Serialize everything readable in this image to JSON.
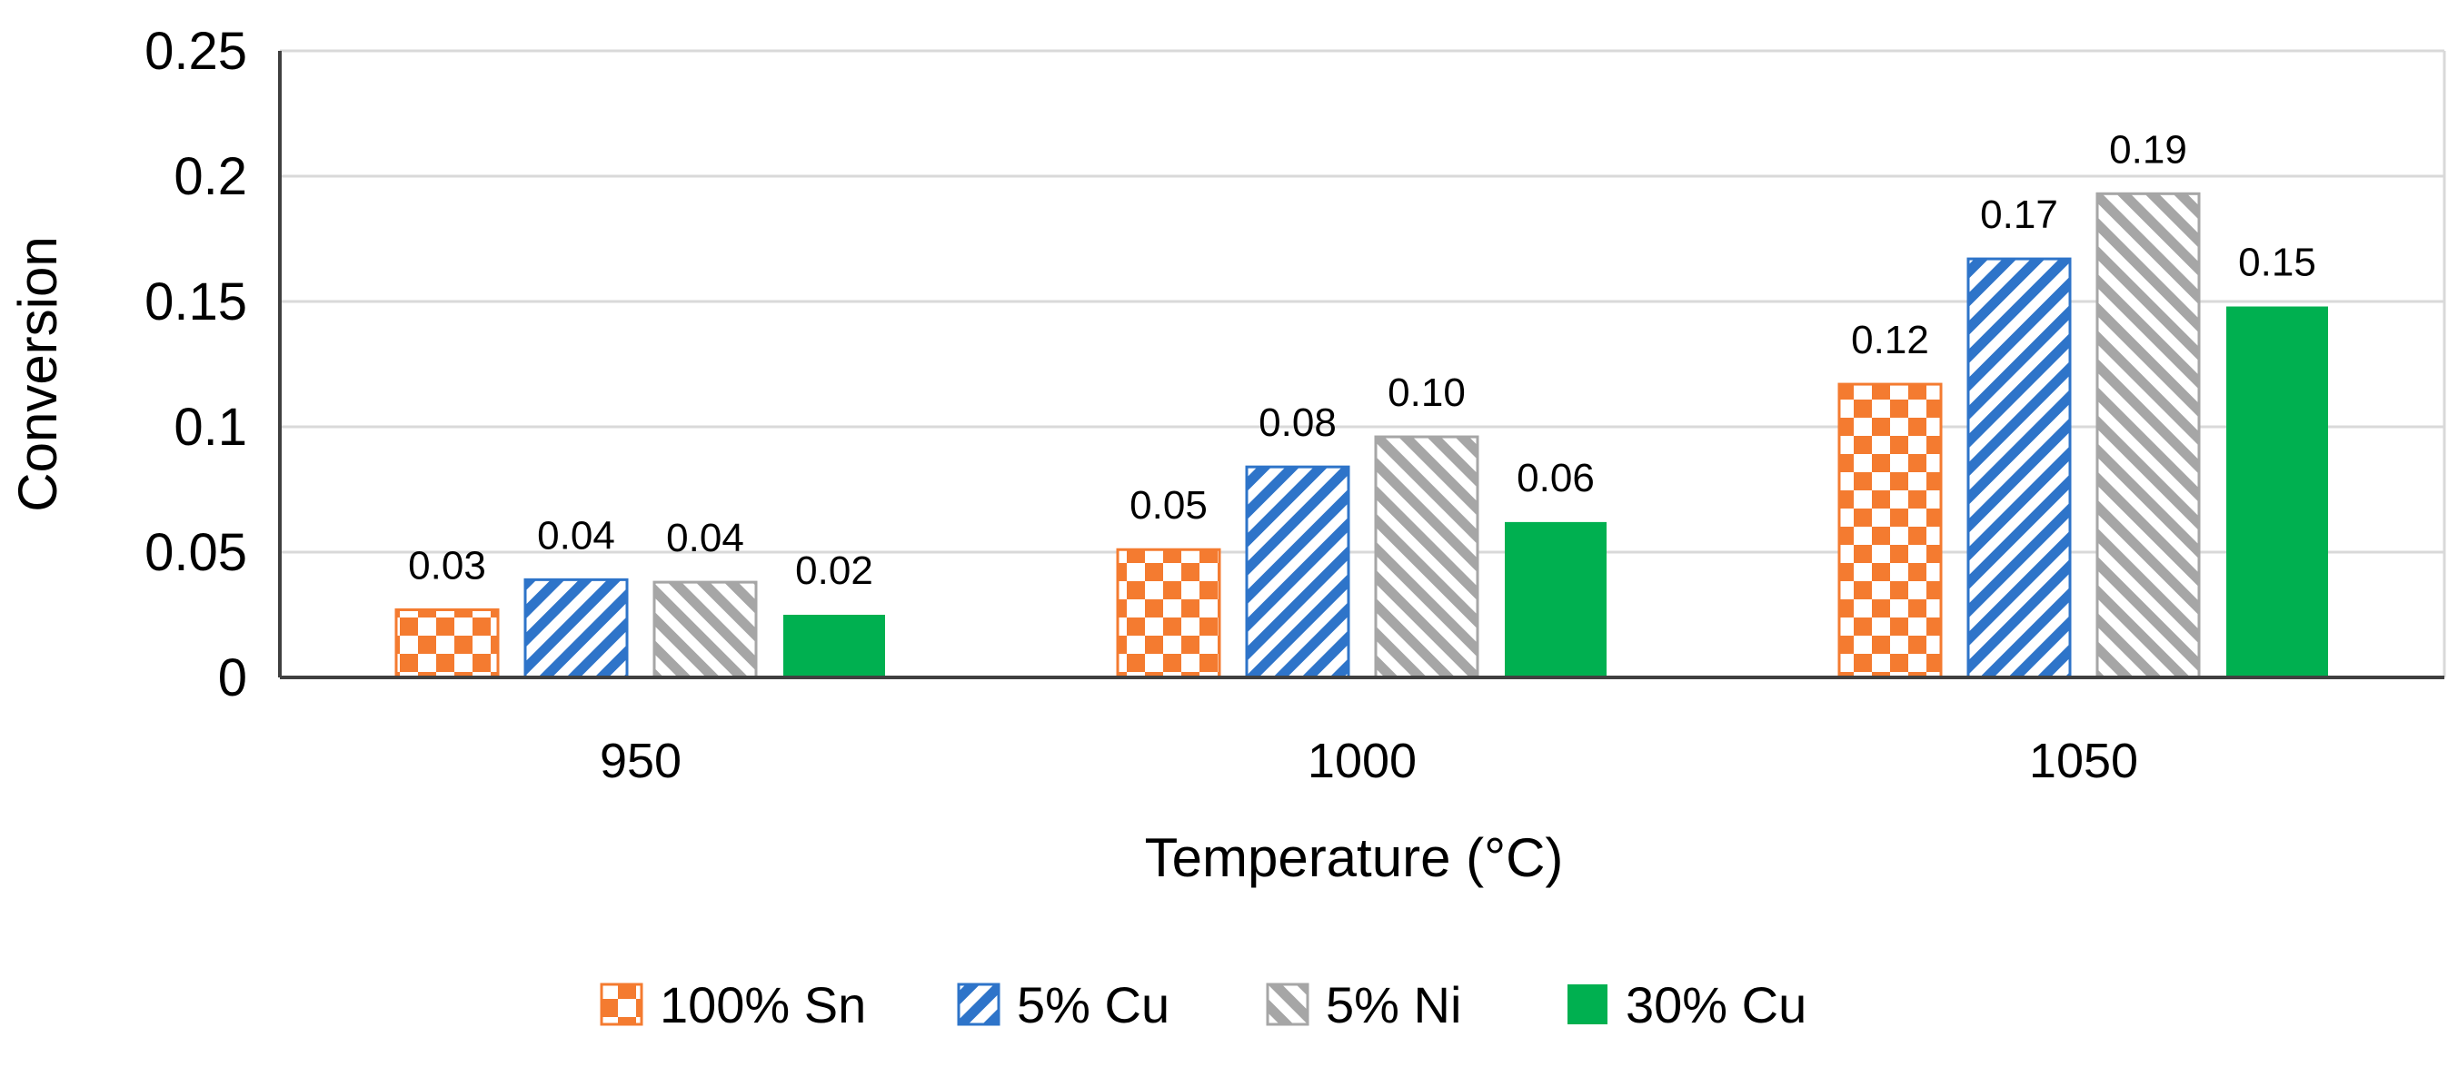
{
  "chart_data": {
    "type": "bar",
    "title": "",
    "xlabel": "Temperature (°C)",
    "ylabel": "Conversion",
    "ylim": [
      0,
      0.25
    ],
    "yticks": [
      "0",
      "0.05",
      "0.1",
      "0.15",
      "0.2",
      "0.25"
    ],
    "ytick_values": [
      0,
      0.05,
      0.1,
      0.15,
      0.2,
      0.25
    ],
    "grid": true,
    "legend_position": "bottom",
    "categories": [
      "950",
      "1000",
      "1050"
    ],
    "series": [
      {
        "name": "100% Sn",
        "pattern": "checker",
        "color": "#F47B30",
        "values": [
          0.027,
          0.051,
          0.117
        ],
        "labels": [
          "0.03",
          "0.05",
          "0.12"
        ]
      },
      {
        "name": "5% Cu",
        "pattern": "diagonal-down",
        "color": "#2E74C9",
        "values": [
          0.039,
          0.084,
          0.167
        ],
        "labels": [
          "0.04",
          "0.08",
          "0.17"
        ]
      },
      {
        "name": "5% Ni",
        "pattern": "diagonal-up",
        "color": "#A6A6A6",
        "values": [
          0.038,
          0.096,
          0.193
        ],
        "labels": [
          "0.04",
          "0.10",
          "0.19"
        ]
      },
      {
        "name": "30% Cu",
        "pattern": "solid",
        "color": "#00B050",
        "values": [
          0.025,
          0.062,
          0.148
        ],
        "labels": [
          "0.02",
          "0.06",
          "0.15"
        ]
      }
    ]
  }
}
